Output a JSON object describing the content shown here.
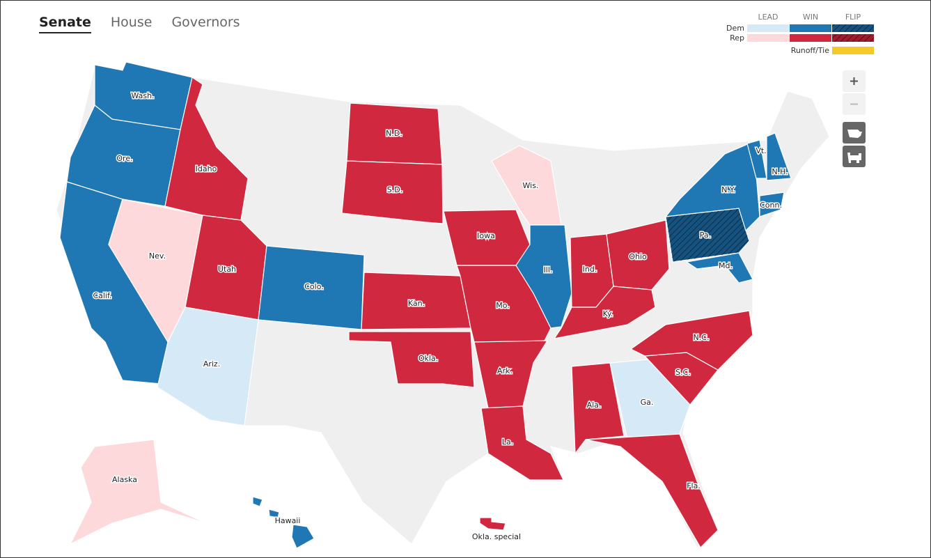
{
  "tabs": [
    "Senate",
    "House",
    "Governors"
  ],
  "legend": {
    "columns": [
      "LEAD",
      "WIN",
      "FLIP"
    ],
    "rows": [
      {
        "label": "Dem",
        "colors": [
          "#d6e9f7",
          "#1f78b4",
          "#15527f"
        ]
      },
      {
        "label": "Rep",
        "colors": [
          "#fdd9dc",
          "#d0293f",
          "#9e1c2e"
        ]
      }
    ],
    "runoff": {
      "label": "Runoff/Tie",
      "color": "#f6c928"
    }
  },
  "states": [
    {
      "label": "Wash.",
      "color": "#1f78b4"
    },
    {
      "label": "Ore.",
      "color": "#1f78b4"
    },
    {
      "label": "Calif.",
      "color": "#1f78b4"
    },
    {
      "label": "Nev.",
      "color": "#fdd9dc"
    },
    {
      "label": "Idaho",
      "color": "#d0293f"
    },
    {
      "label": "Utah",
      "color": "#d0293f"
    },
    {
      "label": "Ariz.",
      "color": "#d6e9f7"
    },
    {
      "label": "Colo.",
      "color": "#1f78b4"
    },
    {
      "label": "N.D.",
      "color": "#d0293f"
    },
    {
      "label": "S.D.",
      "color": "#d0293f"
    },
    {
      "label": "Kan.",
      "color": "#d0293f"
    },
    {
      "label": "Okla.",
      "color": "#d0293f"
    },
    {
      "label": "Iowa",
      "color": "#d0293f"
    },
    {
      "label": "Mo.",
      "color": "#d0293f"
    },
    {
      "label": "Ark.",
      "color": "#d0293f"
    },
    {
      "label": "La.",
      "color": "#d0293f"
    },
    {
      "label": "Wis.",
      "color": "#fdd9dc"
    },
    {
      "label": "Ill.",
      "color": "#1f78b4"
    },
    {
      "label": "Ind.",
      "color": "#d0293f"
    },
    {
      "label": "Ohio",
      "color": "#d0293f"
    },
    {
      "label": "Ky.",
      "color": "#d0293f"
    },
    {
      "label": "Ala.",
      "color": "#d0293f"
    },
    {
      "label": "Ga.",
      "color": "#d6e9f7"
    },
    {
      "label": "Fla.",
      "color": "#d0293f"
    },
    {
      "label": "S.C.",
      "color": "#d0293f"
    },
    {
      "label": "N.C.",
      "color": "#d0293f"
    },
    {
      "label": "Pa.",
      "color": "#15527f"
    },
    {
      "label": "N.Y.",
      "color": "#1f78b4"
    },
    {
      "label": "Vt.",
      "color": "#1f78b4"
    },
    {
      "label": "N.H.",
      "color": "#1f78b4"
    },
    {
      "label": "Conn.",
      "color": "#1f78b4"
    },
    {
      "label": "Md.",
      "color": "#1f78b4"
    },
    {
      "label": "Alaska",
      "color": "#fdd9dc"
    },
    {
      "label": "Hawaii",
      "color": "#1f78b4"
    },
    {
      "label": "Okla. special",
      "color": "#d0293f"
    }
  ]
}
